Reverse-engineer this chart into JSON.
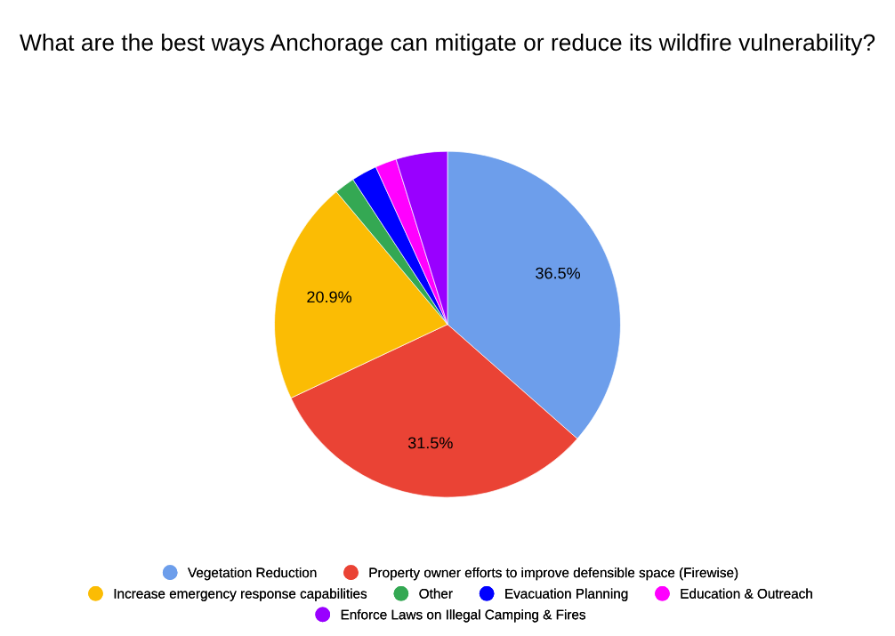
{
  "chart_data": {
    "type": "pie",
    "title": "What are the best ways Anchorage can mitigate or reduce its wildfire vulnerability?",
    "categories": [
      "Vegetation Reduction",
      "Property owner efforts to improve defensible space (Firewise)",
      "Increase emergency response capabilities",
      "Other",
      "Evacuation Planning",
      "Education & Outreach",
      "Enforce Laws on Illegal Camping & Fires"
    ],
    "values": [
      36.5,
      31.5,
      20.9,
      1.9,
      2.4,
      2.0,
      4.8
    ],
    "colors": [
      "#6d9eeb",
      "#ea4335",
      "#fbbc04",
      "#34a853",
      "#0000ff",
      "#ff00ff",
      "#9900ff"
    ],
    "value_labels": [
      "36.5%",
      "31.5%",
      "20.9%",
      null,
      null,
      null,
      null
    ],
    "legend": "bottom"
  }
}
